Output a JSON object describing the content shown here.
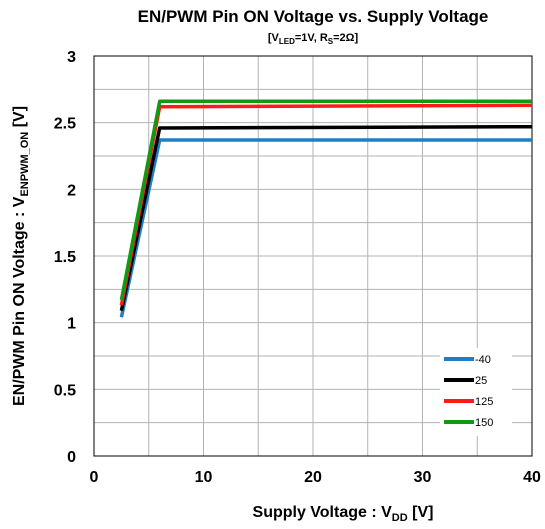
{
  "chart_data": {
    "type": "line",
    "title": "EN/PWM Pin ON Voltage vs. Supply Voltage",
    "subtitle": {
      "p1": "[V",
      "p1_sub": "LED",
      "p2": "=1V, R",
      "p2_sub": "S",
      "p3": "=2Ω]"
    },
    "xlabel": {
      "main": "Supply Voltage : V",
      "sub": "DD",
      "tail": " [V]"
    },
    "ylabel": {
      "main": "EN/PWM Pin ON Voltage : V",
      "sub": "ENPWM_ON",
      "tail": " [V]"
    },
    "xlim": [
      0,
      40
    ],
    "ylim": [
      0,
      3
    ],
    "x_ticks": [
      0,
      10,
      20,
      30,
      40
    ],
    "x_tick_labels": [
      "0",
      "10",
      "20",
      "30",
      "40"
    ],
    "y_ticks": [
      0,
      0.5,
      1,
      1.5,
      2,
      2.5,
      3
    ],
    "y_tick_labels": [
      "0",
      "0.5",
      "1",
      "1.5",
      "2",
      "2.5",
      "3"
    ],
    "x_grid": [
      0,
      5,
      10,
      15,
      20,
      25,
      30,
      35,
      40
    ],
    "y_grid": [
      0,
      0.25,
      0.5,
      0.75,
      1,
      1.25,
      1.5,
      1.75,
      2,
      2.25,
      2.5,
      2.75,
      3
    ],
    "grid": true,
    "legend_position": "bottom-right",
    "series": [
      {
        "name": "-40",
        "color": "#1e7fc8",
        "x": [
          2.5,
          6.0,
          40.0
        ],
        "y": [
          1.04,
          2.37,
          2.37
        ]
      },
      {
        "name": "25",
        "color": "#000000",
        "x": [
          2.5,
          6.0,
          40.0
        ],
        "y": [
          1.09,
          2.46,
          2.47
        ]
      },
      {
        "name": "125",
        "color": "#ff1a1a",
        "x": [
          2.5,
          6.0,
          40.0
        ],
        "y": [
          1.13,
          2.62,
          2.63
        ]
      },
      {
        "name": "150",
        "color": "#119a11",
        "x": [
          2.5,
          6.0,
          40.0
        ],
        "y": [
          1.17,
          2.66,
          2.66
        ]
      }
    ]
  }
}
